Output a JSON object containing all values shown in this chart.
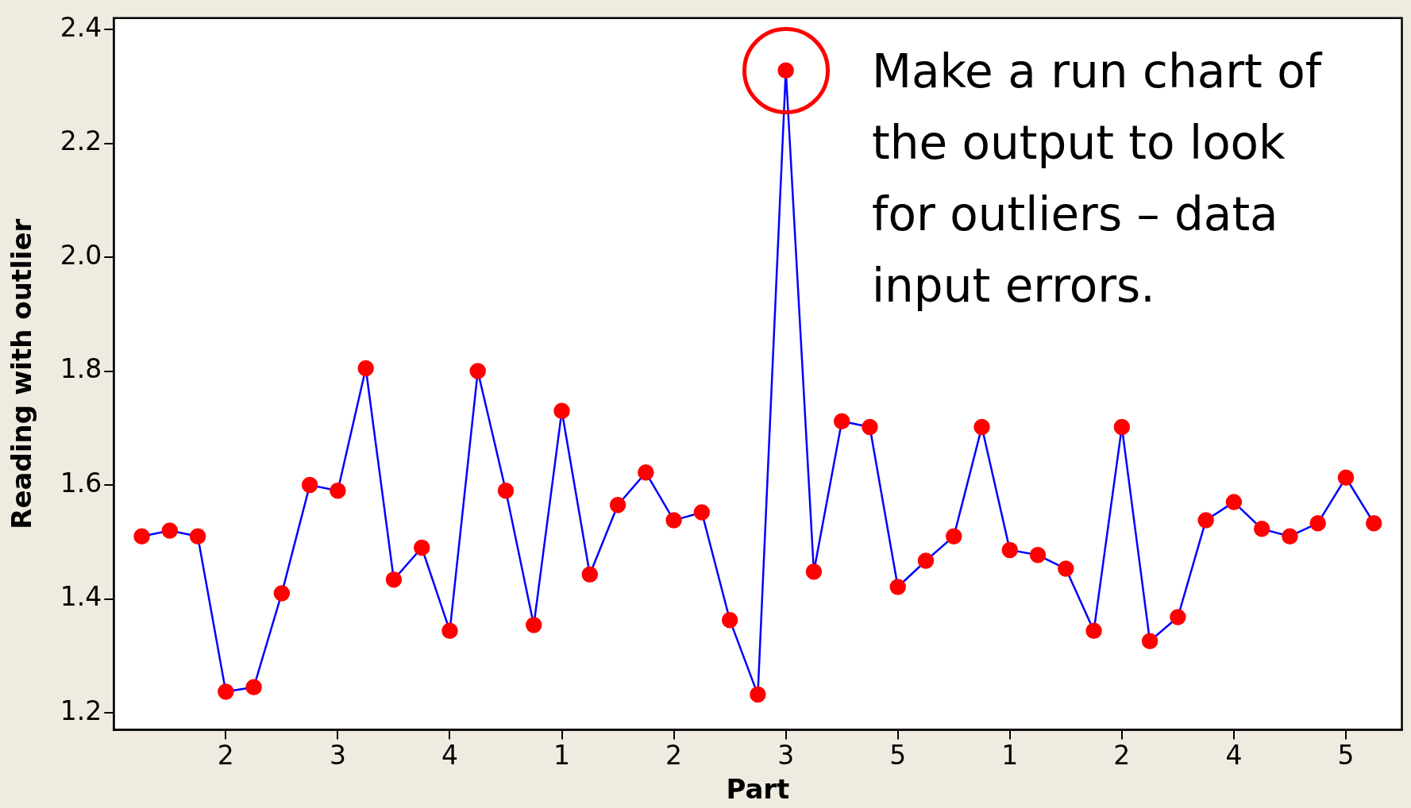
{
  "chart_data": {
    "type": "line",
    "xlabel": "Part",
    "ylabel": "Reading with outlier",
    "categories": [
      null,
      null,
      null,
      "2",
      null,
      null,
      null,
      "3",
      null,
      null,
      null,
      "4",
      null,
      null,
      null,
      "1",
      null,
      null,
      null,
      "2",
      null,
      null,
      null,
      "3",
      null,
      null,
      null,
      "5",
      null,
      null,
      null,
      "1",
      null,
      null,
      null,
      "2",
      null,
      null,
      null,
      "4",
      null,
      null,
      null,
      "5",
      null
    ],
    "series": [
      {
        "color": "#0000ff",
        "colors": [
          "#ff0000",
          "#ff0000",
          "#ff0000",
          "#ff0000",
          "#ff0000",
          "#ff0000",
          "#ff0000",
          "#ff0000",
          "#ff0000",
          "#ff0000",
          "#ff0000",
          "#ff0000",
          "#ff0000",
          "#ff0000",
          "#ff0000",
          "#ff0000",
          "#ff0000",
          "#ff0000",
          "#ff0000",
          "#ff0000",
          "#ff0000",
          "#ff0000",
          "#ff0000",
          "#ff0000",
          "#ff0000",
          "#ff0000",
          "#ff0000",
          "#ff0000",
          "#ff0000",
          "#ff0000",
          "#ff0000",
          "#ff0000",
          "#ff0000",
          "#ff0000",
          "#ff0000",
          "#ff0000",
          "#ff0000",
          "#ff0000",
          "#ff0000",
          "#ff0000",
          "#ff0000",
          "#ff0000",
          "#ff0000",
          "#ff0000",
          "#ff0000"
        ],
        "values": [
          1.51,
          1.52,
          1.51,
          1.237,
          1.245,
          1.41,
          1.6,
          1.59,
          1.805,
          1.434,
          1.49,
          1.344,
          1.8,
          1.59,
          1.354,
          1.73,
          1.443,
          1.565,
          1.622,
          1.538,
          1.552,
          1.363,
          1.232,
          2.328,
          1.448,
          1.712,
          1.702,
          1.421,
          1.467,
          1.51,
          1.702,
          1.486,
          1.477,
          1.453,
          1.344,
          1.702,
          1.326,
          1.368,
          1.538,
          1.57,
          1.523,
          1.51,
          1.533,
          1.613,
          1.533
        ]
      }
    ],
    "ylim": [
      1.17,
      2.42
    ],
    "yticks": [
      1.2,
      1.4,
      1.6,
      1.8,
      {
        "value": 2,
        "label": "2.0"
      },
      2.2,
      2.4
    ],
    "grid": false,
    "legend": false,
    "marker": "circle",
    "line_style": "solid",
    "annotations": [
      "Make a run chart of the output to look for outliers – data input errors."
    ]
  }
}
